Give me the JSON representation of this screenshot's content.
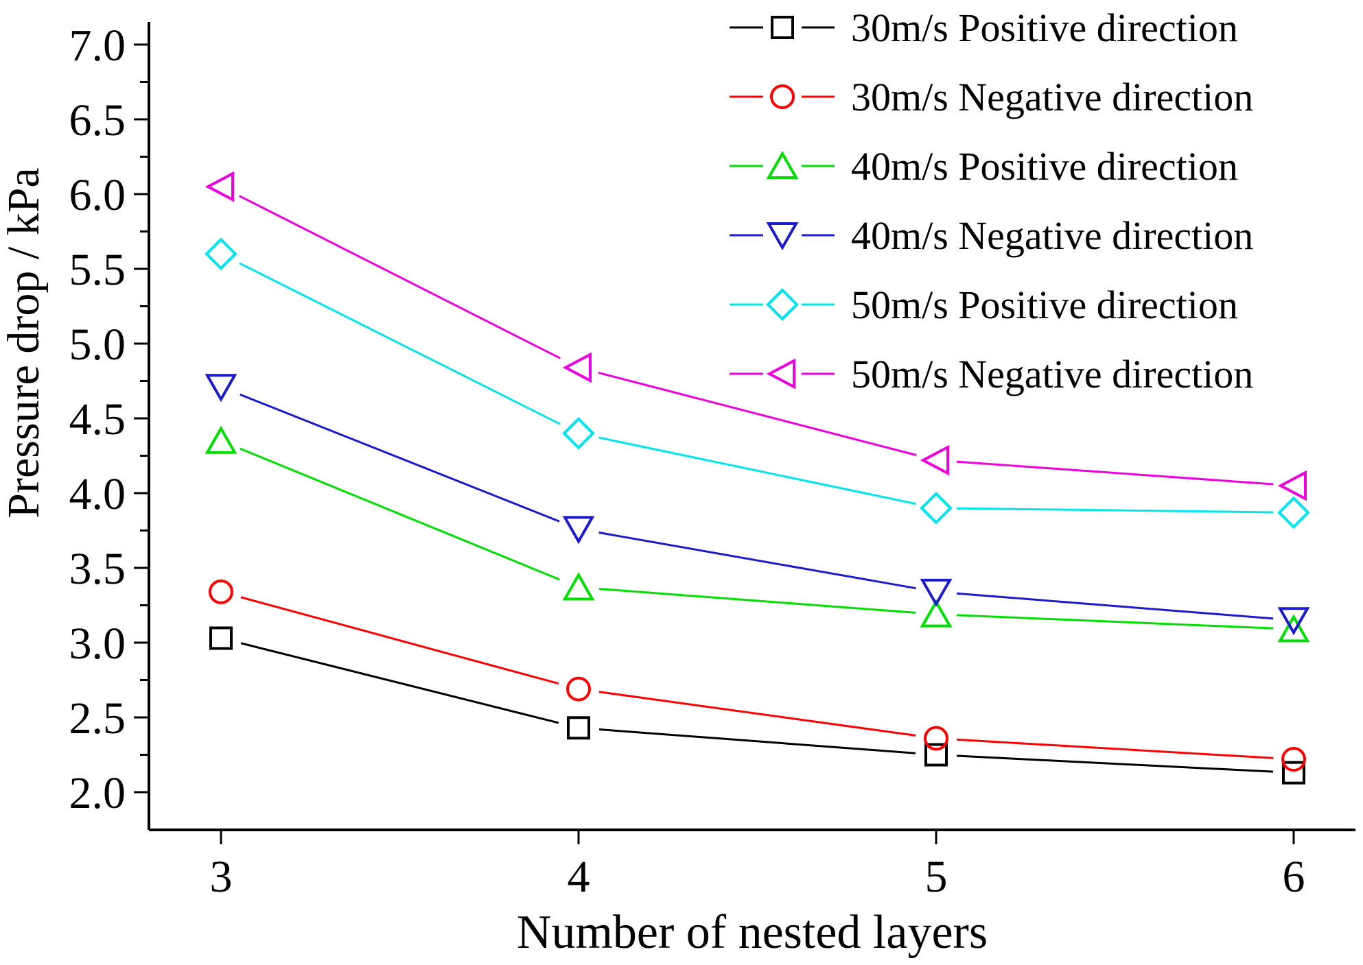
{
  "figure": {
    "background": "#ffffff",
    "text_color": "#000000"
  },
  "chart_data": {
    "type": "line",
    "title": "",
    "xlabel": "Number of nested layers",
    "ylabel": "Pressure drop / kPa",
    "x": [
      3,
      4,
      5,
      6
    ],
    "xlim": [
      2.8,
      6.2
    ],
    "ylim": [
      1.75,
      7.15
    ],
    "xtick_labels": [
      "3",
      "4",
      "5",
      "6"
    ],
    "ytick_labels": [
      "2.0",
      "2.5",
      "3.0",
      "3.5",
      "4.0",
      "4.5",
      "5.0",
      "5.5",
      "6.0",
      "6.5",
      "7.0"
    ],
    "ytick_major_step": 0.5,
    "ytick_minor_step": 0.25,
    "grid": false,
    "legend_position": "top-right",
    "series": [
      {
        "name": "30m/s Positive direction",
        "color": "#000000",
        "marker": "square",
        "values": [
          3.03,
          2.43,
          2.25,
          2.13
        ]
      },
      {
        "name": "30m/s Negative direction",
        "color": "#ff0000",
        "marker": "circle",
        "values": [
          3.34,
          2.69,
          2.36,
          2.22
        ]
      },
      {
        "name": "40m/s Positive direction",
        "color": "#00e000",
        "marker": "triangle-up",
        "values": [
          4.35,
          3.37,
          3.19,
          3.09
        ]
      },
      {
        "name": "40m/s Negative direction",
        "color": "#1a1acf",
        "marker": "triangle-down",
        "values": [
          4.71,
          3.76,
          3.34,
          3.15
        ]
      },
      {
        "name": "50m/s Positive direction",
        "color": "#00e5ee",
        "marker": "diamond",
        "values": [
          5.6,
          4.4,
          3.9,
          3.87
        ]
      },
      {
        "name": "50m/s Negative direction",
        "color": "#f000e0",
        "marker": "triangle-left",
        "values": [
          6.05,
          4.84,
          4.22,
          4.05
        ]
      }
    ]
  }
}
